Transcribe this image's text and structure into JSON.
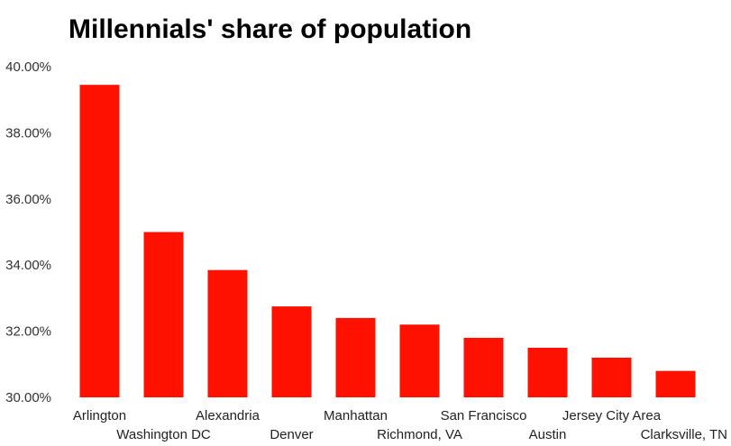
{
  "chart_data": {
    "type": "bar",
    "title": "Millennials' share of population",
    "xlabel": "",
    "ylabel": "",
    "categories": [
      "Arlington",
      "Washington DC",
      "Alexandria",
      "Denver",
      "Manhattan",
      "Richmond, VA",
      "San Francisco",
      "Austin",
      "Jersey City Area",
      "Clarksville, TN"
    ],
    "values": [
      39.45,
      35.0,
      33.85,
      32.75,
      32.4,
      32.2,
      31.8,
      31.5,
      31.2,
      30.8
    ],
    "ylim": [
      30,
      40
    ],
    "yticks": [
      30,
      32,
      34,
      36,
      38,
      40
    ],
    "ytick_labels": [
      "30.00%",
      "32.00%",
      "34.00%",
      "36.00%",
      "38.00%",
      "40.00%"
    ],
    "grid": false,
    "legend": "none",
    "bar_color": "#ff1100"
  }
}
